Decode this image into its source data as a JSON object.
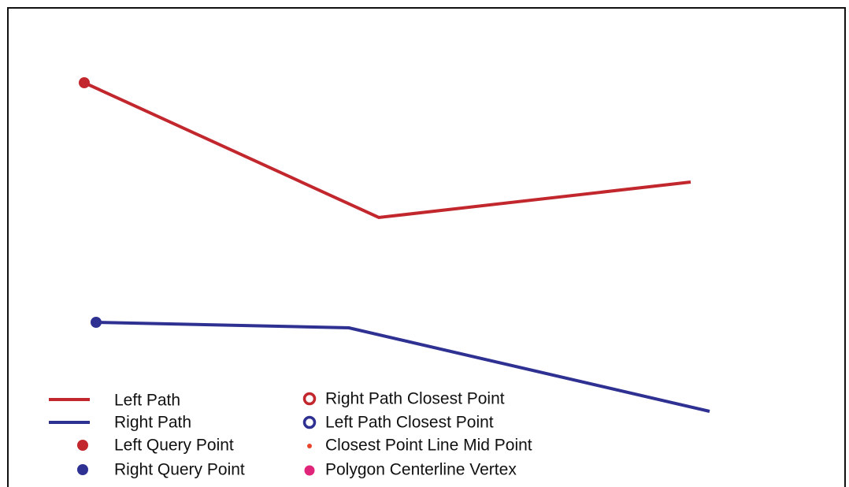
{
  "colors": {
    "left": "#c1272d",
    "right": "#2e3192",
    "midpoint": "#e8452c",
    "centerline": "#e0247a",
    "frame": "#111111",
    "background": "#ffffff"
  },
  "legend": {
    "left_path": "Left Path",
    "right_path": "Right Path",
    "left_query_point": "Left Query Point",
    "right_query_point": "Right Query Point",
    "right_path_closest_point": "Right Path Closest Point",
    "left_path_closest_point": "Left Path Closest Point",
    "closest_point_line_mid_point": "Closest Point Line Mid Point",
    "polygon_centerline_vertex": "Polygon Centerline Vertex"
  }
}
